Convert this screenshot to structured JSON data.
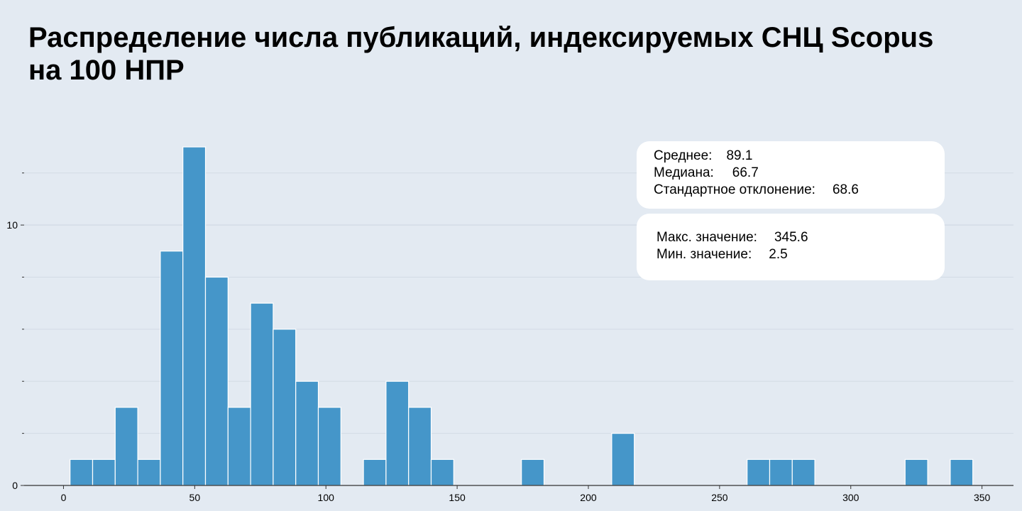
{
  "title": {
    "line1": "Распределение числа публикаций, индексируемых СНЦ Scopus",
    "line2": "на 100 НПР"
  },
  "stats": {
    "mean_label": "Среднее:",
    "mean_value": "89.1",
    "median_label": "Медиана:",
    "median_value": "66.7",
    "std_label": "Стандартное отклонение:",
    "std_value": "68.6",
    "max_label": "Макс. значение:",
    "max_value": "345.6",
    "min_label": "Мин. значение:",
    "min_value": "2.5"
  },
  "colors": {
    "background": "#e3eaf2",
    "bar": "#4596c9",
    "grid": "#d3dbe5"
  },
  "chart_data": {
    "type": "bar",
    "bin_width": 8.6,
    "bins_start": [
      2.5,
      11.1,
      19.7,
      28.3,
      36.9,
      45.5,
      54.1,
      62.7,
      71.3,
      79.9,
      88.5,
      97.1,
      105.7,
      114.3,
      122.9,
      131.5,
      140.1,
      148.7,
      157.3,
      165.9,
      174.5,
      183.1,
      191.7,
      200.3,
      208.9,
      217.5,
      226.1,
      234.7,
      243.3,
      251.9,
      260.5,
      269.1,
      277.7,
      286.3,
      294.9,
      303.5,
      312.1,
      320.7,
      329.3,
      337.9
    ],
    "values": [
      1,
      1,
      3,
      1,
      9,
      13,
      8,
      3,
      7,
      6,
      4,
      3,
      0,
      1,
      4,
      3,
      1,
      0,
      0,
      0,
      1,
      0,
      0,
      0,
      2,
      0,
      0,
      0,
      0,
      0,
      1,
      1,
      1,
      0,
      0,
      0,
      0,
      1,
      0,
      1
    ],
    "xlim": [
      -15,
      362
    ],
    "ylim": [
      0,
      13.6
    ],
    "x_ticks": [
      0,
      50,
      100,
      150,
      200,
      250,
      300,
      350
    ],
    "y_tick_labels": [
      0,
      10
    ],
    "y_minor_ticks": [
      2,
      4,
      6,
      8,
      12
    ],
    "grid": true
  }
}
